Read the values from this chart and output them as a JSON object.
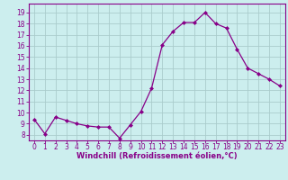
{
  "x": [
    0,
    1,
    2,
    3,
    4,
    5,
    6,
    7,
    8,
    9,
    10,
    11,
    12,
    13,
    14,
    15,
    16,
    17,
    18,
    19,
    20,
    21,
    22,
    23
  ],
  "y": [
    9.4,
    8.1,
    9.6,
    9.3,
    9.0,
    8.8,
    8.7,
    8.7,
    7.7,
    8.9,
    10.1,
    12.2,
    16.1,
    17.3,
    18.1,
    18.1,
    19.0,
    18.0,
    17.6,
    15.7,
    14.0,
    13.5,
    13.0,
    12.4
  ],
  "line_color": "#880088",
  "marker": "D",
  "marker_size": 2.0,
  "bg_color": "#cceeee",
  "grid_color": "#aacccc",
  "xlabel": "Windchill (Refroidissement éolien,°C)",
  "ylabel_ticks": [
    8,
    9,
    10,
    11,
    12,
    13,
    14,
    15,
    16,
    17,
    18,
    19
  ],
  "ylim": [
    7.5,
    19.8
  ],
  "xlim": [
    -0.5,
    23.5
  ],
  "xticks": [
    0,
    1,
    2,
    3,
    4,
    5,
    6,
    7,
    8,
    9,
    10,
    11,
    12,
    13,
    14,
    15,
    16,
    17,
    18,
    19,
    20,
    21,
    22,
    23
  ],
  "spine_color": "#880088",
  "tick_color": "#880088",
  "label_color": "#880088",
  "tick_fontsize": 5.5,
  "xlabel_fontsize": 6.0
}
